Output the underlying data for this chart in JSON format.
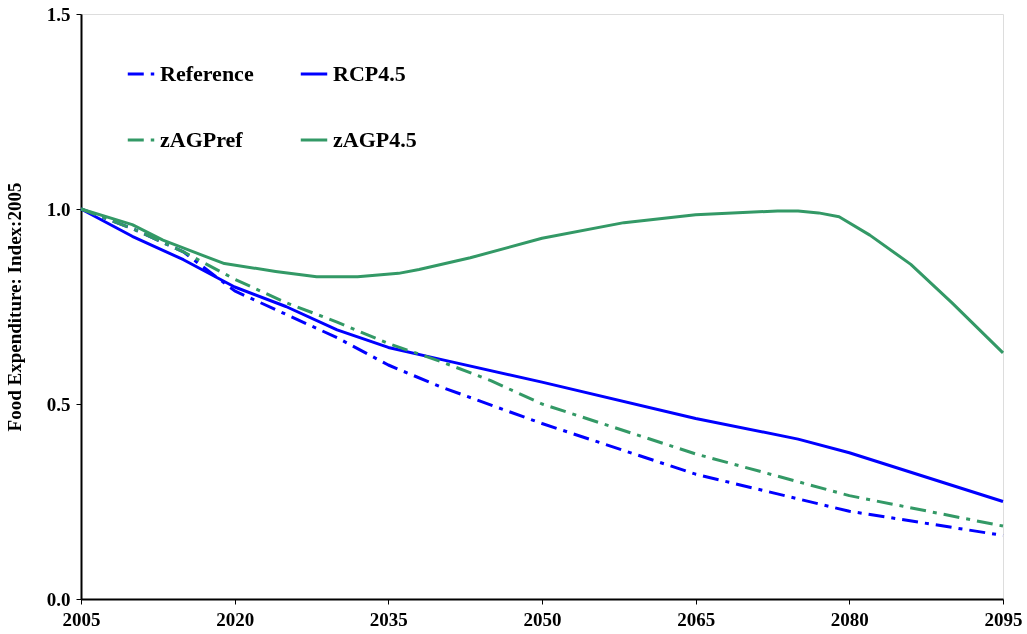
{
  "chart_data": {
    "type": "line",
    "ylabel": "Food Expenditure: Index:2005",
    "xlim": [
      2005,
      2095
    ],
    "xticks": [
      2005,
      2020,
      2035,
      2050,
      2065,
      2080,
      2095
    ],
    "ylim": [
      0,
      1.5
    ],
    "yticks": [
      {
        "value": 0,
        "label": "0.0"
      },
      0.5,
      {
        "value": 1,
        "label": "1.0"
      },
      1.5
    ],
    "grid": false,
    "legend": "top left",
    "marker": "none",
    "series": [
      {
        "name": "Reference",
        "color": "#0000ff",
        "line_style": "dashed",
        "x": [
          2005,
          2010,
          2015,
          2020,
          2025,
          2030,
          2035,
          2040,
          2050,
          2065,
          2080,
          2095
        ],
        "values": [
          1.0,
          0.95,
          0.89,
          0.79,
          0.73,
          0.67,
          0.6,
          0.545,
          0.45,
          0.32,
          0.225,
          0.163
        ]
      },
      {
        "name": "RCP4.5",
        "color": "#0000ff",
        "line_style": "solid",
        "x": [
          2005,
          2010,
          2015,
          2020,
          2025,
          2030,
          2035,
          2040,
          2050,
          2065,
          2075,
          2080,
          2095
        ],
        "values": [
          1.0,
          0.93,
          0.87,
          0.8,
          0.75,
          0.69,
          0.645,
          0.615,
          0.556,
          0.463,
          0.41,
          0.375,
          0.25
        ]
      },
      {
        "name": "zAGPref",
        "color": "#339966",
        "line_style": "dashed",
        "x": [
          2005,
          2010,
          2015,
          2020,
          2025,
          2030,
          2035,
          2040,
          2045,
          2050,
          2065,
          2080,
          2095
        ],
        "values": [
          1.0,
          0.95,
          0.89,
          0.82,
          0.76,
          0.71,
          0.655,
          0.61,
          0.56,
          0.5,
          0.372,
          0.265,
          0.187
        ]
      },
      {
        "name": "zAGP4.5",
        "color": "#339966",
        "line_style": "solid",
        "x": [
          2005,
          2010,
          2013,
          2017,
          2019,
          2024,
          2028,
          2032,
          2036,
          2038,
          2043,
          2050,
          2058,
          2065,
          2073,
          2075,
          2077,
          2079,
          2082,
          2086,
          2090,
          2095
        ],
        "values": [
          1.0,
          0.96,
          0.92,
          0.88,
          0.86,
          0.84,
          0.826,
          0.826,
          0.835,
          0.845,
          0.875,
          0.925,
          0.965,
          0.985,
          0.995,
          0.995,
          0.99,
          0.98,
          0.933,
          0.858,
          0.76,
          0.631
        ]
      }
    ]
  }
}
